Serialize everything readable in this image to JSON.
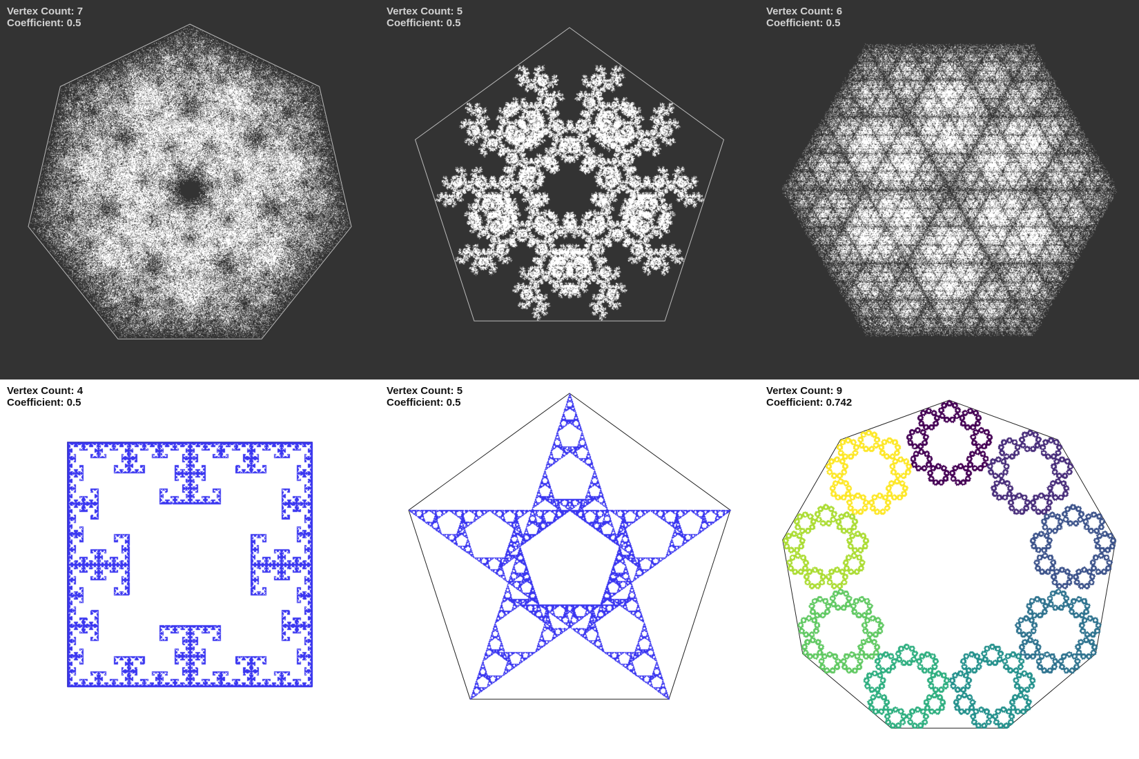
{
  "label_prefix_vertex": "Vertex Count:",
  "label_prefix_coef": "Coefficient:",
  "panels": [
    {
      "vertex_count": "7",
      "coefficient": "0.5",
      "vertices": 7,
      "ratio": 0.5,
      "theme": "dark",
      "color": "#ffffff",
      "color_mode": "solid",
      "rule": "none"
    },
    {
      "vertex_count": "5",
      "coefficient": "0.5",
      "vertices": 5,
      "ratio": 0.5,
      "theme": "dark",
      "color": "#ffffff",
      "color_mode": "solid",
      "rule": "no-repeat"
    },
    {
      "vertex_count": "6",
      "coefficient": "0.5",
      "vertices": 6,
      "ratio": 0.5,
      "theme": "dark",
      "color": "#ffffff",
      "color_mode": "solid",
      "rule": "none",
      "outline": false
    },
    {
      "vertex_count": "4",
      "coefficient": "0.5",
      "vertices": 4,
      "ratio": 0.5,
      "theme": "light",
      "color": "#3a36f0",
      "color_mode": "solid",
      "rule": "no-opposite"
    },
    {
      "vertex_count": "5",
      "coefficient": "0.5",
      "vertices": 5,
      "ratio": 0.5,
      "theme": "light",
      "color": "#3a36f0",
      "color_mode": "solid",
      "rule": "no-neighbor"
    },
    {
      "vertex_count": "9",
      "coefficient": "0.742",
      "vertices": 9,
      "ratio": 0.742,
      "theme": "light",
      "color": "#440154",
      "color_mode": "viridis",
      "rule": "none"
    }
  ]
}
